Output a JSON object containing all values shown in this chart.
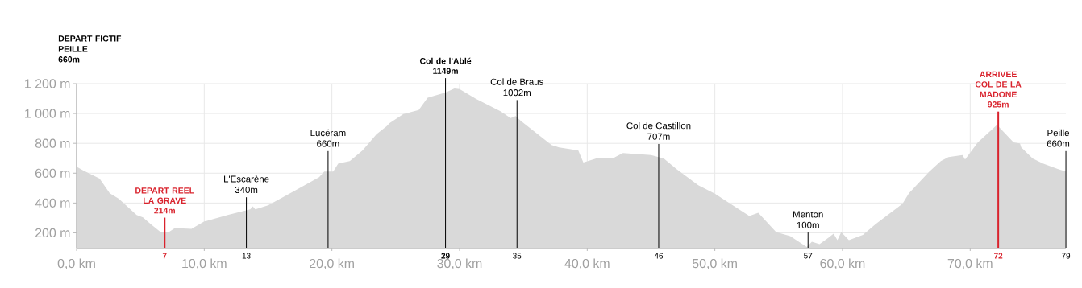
{
  "chart_data": {
    "type": "area",
    "color": "#d9d9d9",
    "x": [
      0,
      0.53,
      1.17,
      1.8,
      2.6,
      3.3,
      4.7,
      5.2,
      5.8,
      6.6,
      7.2,
      7.7,
      9.0,
      10.0,
      11.9,
      13.6,
      13.8,
      14.0,
      15.0,
      17.1,
      19.0,
      19.4,
      20.1,
      20.5,
      21.4,
      22.4,
      23.5,
      24.3,
      24.5,
      25.6,
      26.8,
      27.5,
      28.9,
      29.6,
      30.0,
      31.3,
      33.2,
      34.0,
      34.4,
      34.8,
      37.2,
      37.8,
      39.3,
      39.7,
      40.7,
      42.0,
      42.8,
      45.0,
      46.0,
      47.0,
      48.7,
      50.0,
      52.7,
      53.4,
      54.8,
      55.9,
      57.2,
      57.6,
      58.2,
      58.9,
      59.3,
      59.6,
      59.9,
      60.5,
      61.6,
      62.6,
      64.7,
      65.2,
      66.8,
      67.7,
      68.3,
      69.4,
      69.6,
      70.6,
      72.1,
      73.4,
      73.9,
      74.0,
      74.9,
      75.7,
      76.9,
      77.5
    ],
    "values": [
      643,
      618,
      591,
      564,
      465,
      429,
      320,
      303,
      259,
      204,
      204,
      232,
      227,
      276,
      321,
      357,
      378,
      357,
      384,
      483,
      573,
      611,
      611,
      665,
      681,
      753,
      861,
      915,
      935,
      996,
      1024,
      1105,
      1141,
      1168,
      1164,
      1098,
      1015,
      969,
      983,
      951,
      789,
      773,
      753,
      672,
      699,
      699,
      735,
      721,
      699,
      627,
      519,
      462,
      313,
      335,
      205,
      178,
      105,
      141,
      124,
      168,
      195,
      151,
      205,
      151,
      186,
      259,
      395,
      465,
      611,
      681,
      708,
      721,
      692,
      807,
      924,
      807,
      800,
      773,
      699,
      665,
      627,
      611
    ],
    "xlim": [
      0,
      77.5
    ],
    "ylim": [
      100,
      1200
    ],
    "xticks": [
      {
        "value": 0,
        "label": "0,0 km"
      },
      {
        "value": 10,
        "label": "10,0 km"
      },
      {
        "value": 20,
        "label": "20,0 km"
      },
      {
        "value": 30,
        "label": "30,0 km"
      },
      {
        "value": 40,
        "label": "40,0 km"
      },
      {
        "value": 50,
        "label": "50,0 km"
      },
      {
        "value": 60,
        "label": "60,0 km"
      },
      {
        "value": 70,
        "label": "70,0 km"
      }
    ],
    "yticks": [
      {
        "value": 200,
        "label": "200 m"
      },
      {
        "value": 400,
        "label": "400 m"
      },
      {
        "value": 600,
        "label": "600 m"
      },
      {
        "value": 800,
        "label": "800 m"
      },
      {
        "value": 1000,
        "label": "1 000 m"
      },
      {
        "value": 1200,
        "label": "1 200 m"
      }
    ],
    "grid": true,
    "ref_lines": [
      {
        "axis": "x",
        "value": 6.9,
        "label": "DEPART REEL LA GRAVE",
        "color": "#d9232d"
      },
      {
        "axis": "x",
        "value": 13.3,
        "label": "L'Escarène"
      },
      {
        "axis": "x",
        "value": 28.9,
        "label": "Col de l'Ablé",
        "color": "#000000"
      },
      {
        "axis": "x",
        "value": 34.5,
        "label": "Col de Braus"
      },
      {
        "axis": "x",
        "value": 45.6,
        "label": "Col de Castillon"
      },
      {
        "axis": "x",
        "value": 57.3,
        "label": "Menton"
      },
      {
        "axis": "x",
        "value": 72.2,
        "label": "ARRIVEE COL DE LA MADONE",
        "color": "#d9232d"
      },
      {
        "axis": "x",
        "value": 77.5,
        "label": "Peille"
      },
      {
        "axis": "x",
        "value": 19.7,
        "label": "Lucéram"
      }
    ],
    "annotations": [
      "DEPART FICTIF PEILLE",
      "660m",
      {
        "text": "214m",
        "x": 6.9,
        "y": 214
      },
      {
        "text": "340m",
        "x": 13.3,
        "y": 340
      },
      {
        "text": "660m",
        "x": 19.7,
        "y": 660
      },
      {
        "text": "1149m",
        "x": 28.9,
        "y": 1149
      },
      {
        "text": "1002m",
        "x": 34.5,
        "y": 1002
      },
      {
        "text": "707m",
        "x": 45.6,
        "y": 707
      },
      {
        "text": "100m",
        "x": 57.3,
        "y": 100
      },
      {
        "text": "925m",
        "x": 72.2,
        "y": 925
      },
      {
        "text": "660m",
        "x": 77.5,
        "y": 660
      },
      "7",
      "13",
      "29",
      "35",
      "46",
      "57",
      "72",
      "79"
    ]
  }
}
